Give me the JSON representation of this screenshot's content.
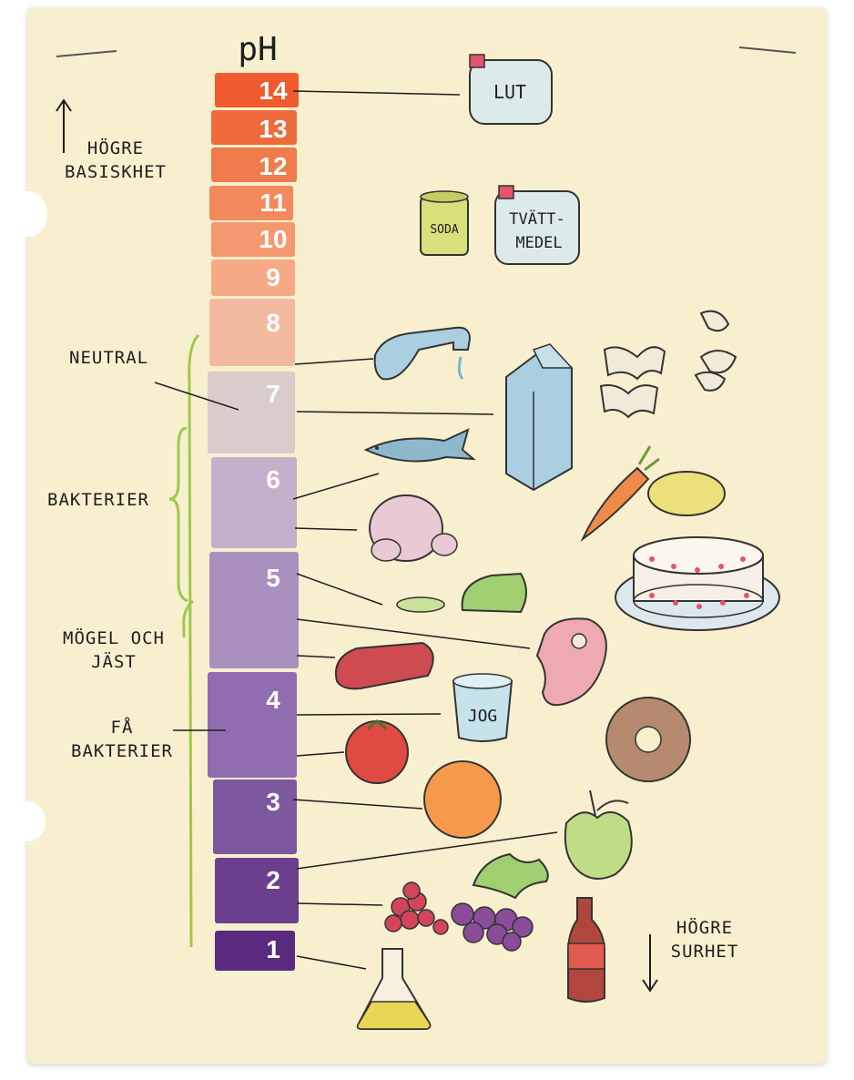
{
  "title": "pH",
  "ph_levels": [
    {
      "value": "14",
      "color": "#ef5a2e"
    },
    {
      "value": "13",
      "color": "#ef6b3c"
    },
    {
      "value": "12",
      "color": "#f07b4c"
    },
    {
      "value": "11",
      "color": "#f28a5d"
    },
    {
      "value": "10",
      "color": "#f4996f"
    },
    {
      "value": "9",
      "color": "#f5a985"
    },
    {
      "value": "8",
      "color": "#f4baa0"
    },
    {
      "value": "7",
      "color": "#d9cccb"
    },
    {
      "value": "6",
      "color": "#c4b0cb"
    },
    {
      "value": "5",
      "color": "#aa90bf"
    },
    {
      "value": "4",
      "color": "#8f6db0"
    },
    {
      "value": "3",
      "color": "#7c589f"
    },
    {
      "value": "2",
      "color": "#6b3f8e"
    },
    {
      "value": "1",
      "color": "#5a2a7e"
    }
  ],
  "labels": {
    "higher_basicity": "Högre basiskhet",
    "neutral": "Neutral",
    "bacteria": "Bakterier",
    "mold_yeast": "Mögel och jäst",
    "few_bacteria": "Få bakterier",
    "higher_acidity": "Högre surhet"
  },
  "products": {
    "lye": "LUT",
    "soda": "SODA",
    "detergent_line1": "TVÄTT-",
    "detergent_line2": "MEDEL",
    "yogurt": "JOG"
  },
  "items": [
    {
      "name": "lye-jug",
      "ph": 14
    },
    {
      "name": "soda-can",
      "ph": 11
    },
    {
      "name": "detergent-jug",
      "ph": 11
    },
    {
      "name": "tap-water",
      "ph": 7.5
    },
    {
      "name": "milk-carton",
      "ph": 6.8
    },
    {
      "name": "fish",
      "ph": 6.2
    },
    {
      "name": "chicken",
      "ph": 5.8
    },
    {
      "name": "cucumber",
      "ph": 5.2
    },
    {
      "name": "meat-steak",
      "ph": 4.8
    },
    {
      "name": "salami",
      "ph": 4.6
    },
    {
      "name": "yogurt-cup",
      "ph": 4.1
    },
    {
      "name": "tomato",
      "ph": 3.8
    },
    {
      "name": "orange",
      "ph": 3.5
    },
    {
      "name": "apple",
      "ph": 2.5
    },
    {
      "name": "berries-grapes",
      "ph": 2.2
    },
    {
      "name": "acid-flask",
      "ph": 0.8
    }
  ],
  "accent_color": "#9cc94a",
  "ink_color": "#1e1e1e"
}
